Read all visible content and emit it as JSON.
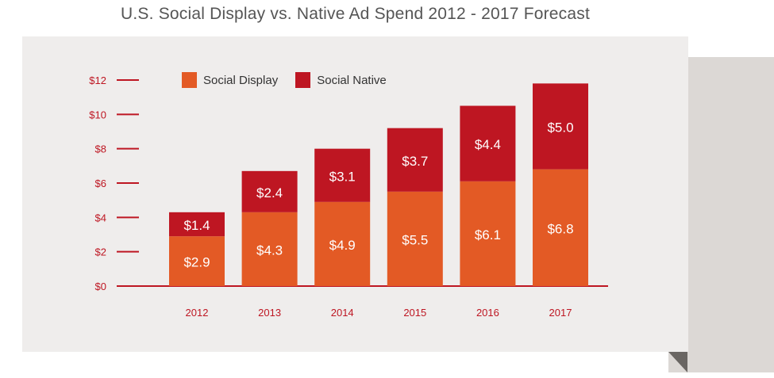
{
  "chart_data": {
    "type": "bar",
    "stacked": true,
    "title": "U.S. Social Display vs. Native Ad Spend 2012 - 2017 Forecast",
    "categories": [
      "2012",
      "2013",
      "2014",
      "2015",
      "2016",
      "2017"
    ],
    "series": [
      {
        "name": "Social Display",
        "color": "#e35a25",
        "values": [
          2.9,
          4.3,
          4.9,
          5.5,
          6.1,
          6.8
        ],
        "labels": [
          "$2.9",
          "$4.3",
          "$4.9",
          "$5.5",
          "$6.1",
          "$6.8"
        ]
      },
      {
        "name": "Social Native",
        "color": "#be1622",
        "values": [
          1.4,
          2.4,
          3.1,
          3.7,
          4.4,
          5.0
        ],
        "labels": [
          "$1.4",
          "$2.4",
          "$3.1",
          "$3.7",
          "$4.4",
          "$5.0"
        ]
      }
    ],
    "y_ticks": [
      {
        "value": 0,
        "label": "$0"
      },
      {
        "value": 2,
        "label": "$2"
      },
      {
        "value": 4,
        "label": "$4"
      },
      {
        "value": 6,
        "label": "$6"
      },
      {
        "value": 8,
        "label": "$8"
      },
      {
        "value": 10,
        "label": "$10"
      },
      {
        "value": 12,
        "label": "$12"
      }
    ],
    "ylim": [
      0,
      12
    ],
    "legend_position": "top-left",
    "grid": false,
    "axis_color": "#be1622",
    "label_color": "#ffffff"
  }
}
